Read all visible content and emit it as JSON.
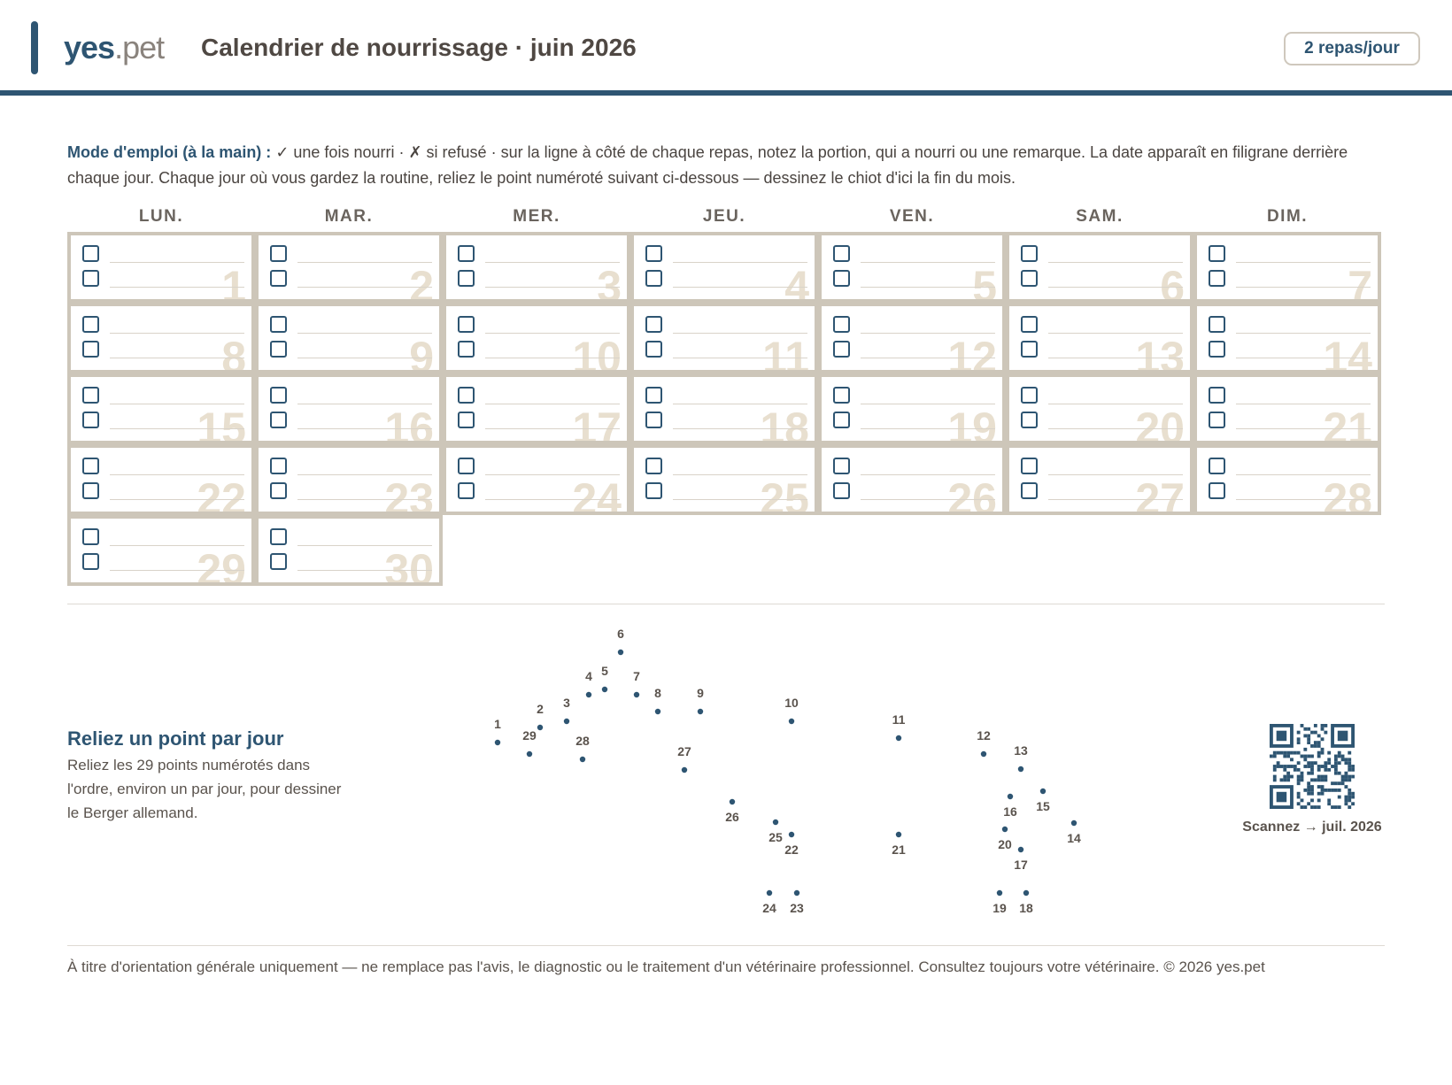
{
  "header": {
    "logo_main": "yes",
    "logo_suffix": ".pet",
    "title": "Calendrier de nourrissage · juin 2026",
    "badge": "2 repas/jour"
  },
  "instructions": {
    "lead": "Mode d'emploi (à la main) :",
    "text": " ✓ une fois nourri · ✗ si refusé · sur la ligne à côté de chaque repas, notez la portion, qui a nourri ou une remarque. La date apparaît en filigrane derrière chaque jour. Chaque jour où vous gardez la routine, reliez le point numéroté suivant ci-dessous — dessinez le chiot d'ici la fin du mois."
  },
  "calendar": {
    "weekdays": [
      "LUN.",
      "MAR.",
      "MER.",
      "JEU.",
      "VEN.",
      "SAM.",
      "DIM."
    ],
    "days": [
      "1",
      "2",
      "3",
      "4",
      "5",
      "6",
      "7",
      "8",
      "9",
      "10",
      "11",
      "12",
      "13",
      "14",
      "15",
      "16",
      "17",
      "18",
      "19",
      "20",
      "21",
      "22",
      "23",
      "24",
      "25",
      "26",
      "27",
      "28",
      "29",
      "30"
    ],
    "meals_per_day": 2
  },
  "dot_to_dot": {
    "title": "Reliez un point par jour",
    "description": "Reliez les 29 points numérotés dans l'ordre, environ un par jour, pour dessiner le Berger allemand.",
    "points": [
      "1",
      "2",
      "3",
      "4",
      "5",
      "6",
      "7",
      "8",
      "9",
      "10",
      "11",
      "12",
      "13",
      "14",
      "15",
      "16",
      "17",
      "18",
      "19",
      "20",
      "21",
      "22",
      "23",
      "24",
      "25",
      "26",
      "27",
      "28",
      "29"
    ]
  },
  "qr": {
    "caption": "Scannez → juil. 2026"
  },
  "footer": {
    "text": "À titre d'orientation générale uniquement — ne remplace pas l'avis, le diagnostic ou le traitement d'un vétérinaire professionnel. Consultez toujours votre vétérinaire. © 2026 yes.pet"
  },
  "colors": {
    "brand": "#2e5572",
    "grid": "#cdc6b9",
    "watermark": "#e8dfcf"
  }
}
